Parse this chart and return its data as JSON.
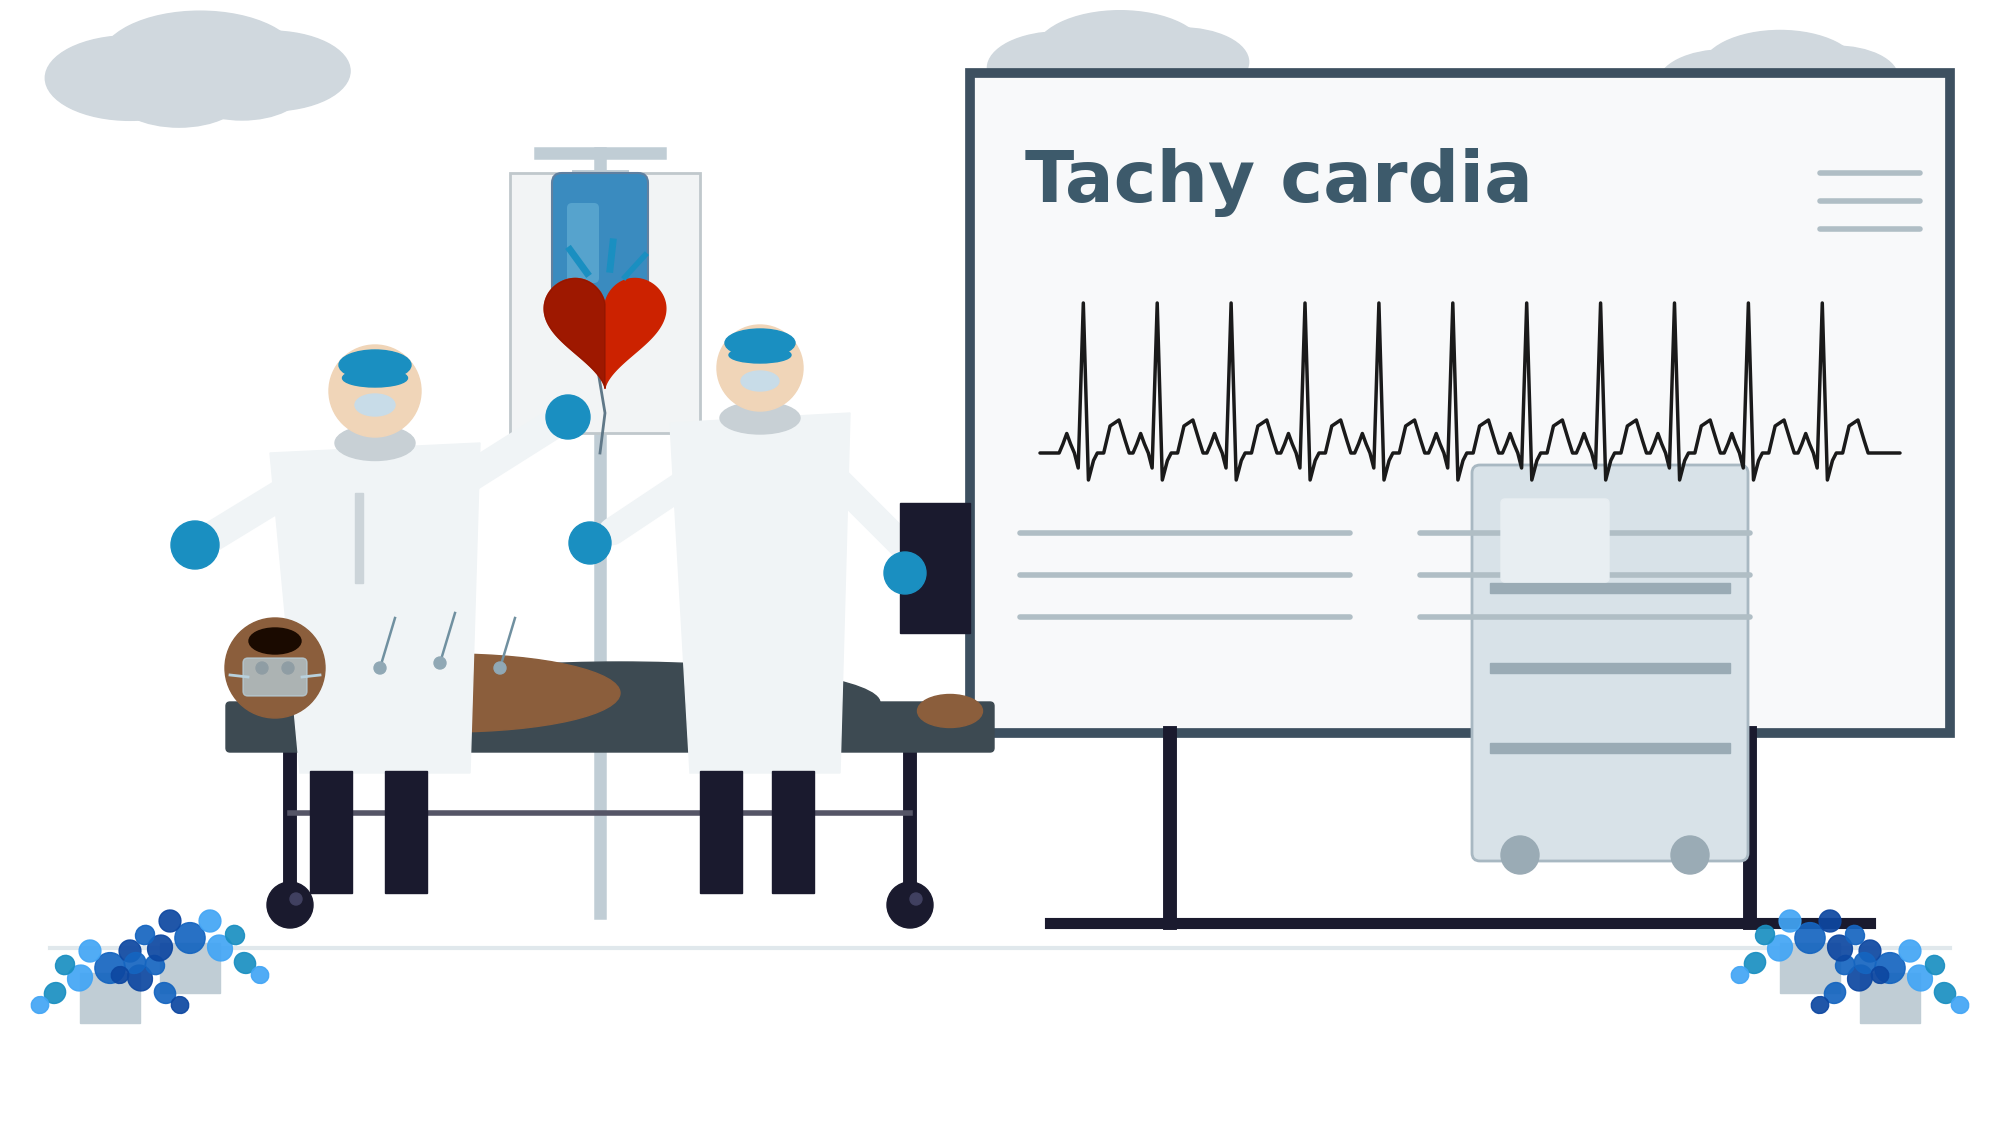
{
  "bg_color": "#ffffff",
  "title": "Tachy cardia",
  "title_color": "#3d5a6b",
  "title_fontsize": 52,
  "ecg_color": "#1a1a1a",
  "board_bg": "#f8f9fa",
  "board_border": "#3d5060",
  "blue_color": "#1a8fc1",
  "blue_dark": "#0d47a1",
  "blue_light": "#42A5F5",
  "white_color": "#e8ecee",
  "white_pure": "#f0f4f6",
  "dark_color": "#1a1a2e",
  "skin_color": "#8B5E3C",
  "dark_skin": "#5a3520",
  "gray_dark": "#3d4a52",
  "gray_light": "#b0bec5",
  "gray_medium": "#8090a0",
  "teal_dark": "#2d5a6b",
  "red_color": "#cc2200",
  "dark_red": "#8B1500",
  "cloud_color": "#d0d8de",
  "plant_blue1": "#1565C0",
  "plant_blue2": "#42A5F5",
  "plant_blue3": "#0d47a1",
  "cart_color": "#d8e2e8",
  "pole_color": "#c0cdd5"
}
